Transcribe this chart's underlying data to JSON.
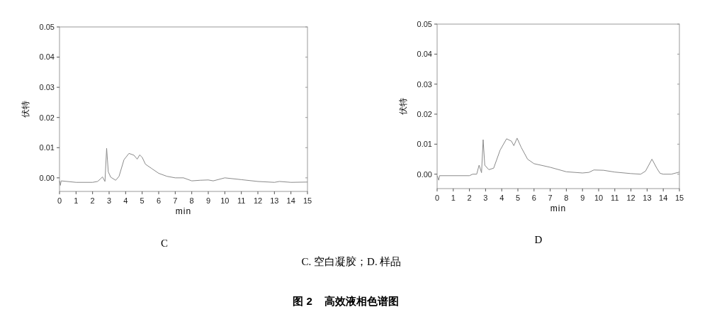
{
  "chart_data": [
    {
      "type": "line",
      "xlabel": "min",
      "ylabel": "伏特",
      "annotations": [
        "C"
      ],
      "xlim": [
        0,
        15
      ],
      "ylim": [
        -0.0045,
        0.05
      ],
      "xticks": [
        0,
        1,
        2,
        3,
        4,
        5,
        6,
        7,
        8,
        9,
        10,
        11,
        12,
        13,
        14,
        15
      ],
      "yticks": [
        {
          "value": 0,
          "label": "0.00"
        },
        {
          "value": 0.01,
          "label": "0.01"
        },
        {
          "value": 0.02,
          "label": "0.02"
        },
        {
          "value": 0.03,
          "label": "0.03"
        },
        {
          "value": 0.04,
          "label": "0.04"
        },
        {
          "value": 0.05,
          "label": "0.05"
        }
      ],
      "grid": false,
      "series": [
        {
          "color": "#8a8a8a",
          "x": [
            0,
            0.05,
            0.1,
            1,
            2,
            2.3,
            2.45,
            2.6,
            2.75,
            2.85,
            2.95,
            3.1,
            3.4,
            3.6,
            3.9,
            4.2,
            4.5,
            4.7,
            4.85,
            5,
            5.2,
            5.6,
            6,
            6.5,
            7,
            7.5,
            8,
            8.5,
            9,
            9.3,
            10,
            10.5,
            11,
            12,
            13,
            13.3,
            14,
            15
          ],
          "values": [
            -0.001,
            -0.0025,
            -0.001,
            -0.0015,
            -0.0015,
            -0.0012,
            -0.0005,
            0.0003,
            -0.0012,
            0.0098,
            0.002,
            0.0002,
            -0.0008,
            0.0005,
            0.006,
            0.0081,
            0.0075,
            0.0062,
            0.0076,
            0.0068,
            0.0045,
            0.003,
            0.0015,
            0.0005,
            0,
            0,
            -0.001,
            -0.0008,
            -0.0007,
            -0.001,
            0,
            -0.0003,
            -0.0006,
            -0.0012,
            -0.0015,
            -0.0012,
            -0.0015,
            -0.0014
          ]
        }
      ]
    },
    {
      "type": "line",
      "xlabel": "min",
      "ylabel": "伏特",
      "annotations": [
        "D",
        "C. 空白凝胶；D. 样品",
        "图 2    高效液相色谱图"
      ],
      "xlim": [
        0,
        15
      ],
      "ylim": [
        -0.0048,
        0.05
      ],
      "xticks": [
        0,
        1,
        2,
        3,
        4,
        5,
        6,
        7,
        8,
        9,
        10,
        11,
        12,
        13,
        14,
        15
      ],
      "yticks": [
        {
          "value": 0,
          "label": "0.00"
        },
        {
          "value": 0.01,
          "label": "0.01"
        },
        {
          "value": 0.02,
          "label": "0.02"
        },
        {
          "value": 0.03,
          "label": "0.03"
        },
        {
          "value": 0.04,
          "label": "0.04"
        },
        {
          "value": 0.05,
          "label": "0.05"
        }
      ],
      "grid": false,
      "series": [
        {
          "color": "#8a8a8a",
          "x": [
            0,
            0.1,
            0.15,
            2,
            2.2,
            2.45,
            2.6,
            2.75,
            2.85,
            2.95,
            3.2,
            3.5,
            3.9,
            4.3,
            4.6,
            4.75,
            4.95,
            5.2,
            5.6,
            6,
            7,
            8,
            9,
            9.4,
            9.7,
            10.3,
            11,
            12,
            12.6,
            12.9,
            13.3,
            13.6,
            13.8,
            14,
            14.5,
            15
          ],
          "values": [
            -0.0005,
            -0.002,
            -0.0005,
            -0.0005,
            0,
            0,
            0.003,
            0.0005,
            0.0115,
            0.003,
            0.0015,
            0.002,
            0.008,
            0.0118,
            0.011,
            0.0095,
            0.012,
            0.009,
            0.005,
            0.0035,
            0.0023,
            0.0008,
            0.0004,
            0.0006,
            0.0014,
            0.0013,
            0.0007,
            0.0002,
            0,
            0.001,
            0.005,
            0.002,
            0.0003,
            0,
            0,
            0.0007
          ]
        }
      ]
    }
  ]
}
